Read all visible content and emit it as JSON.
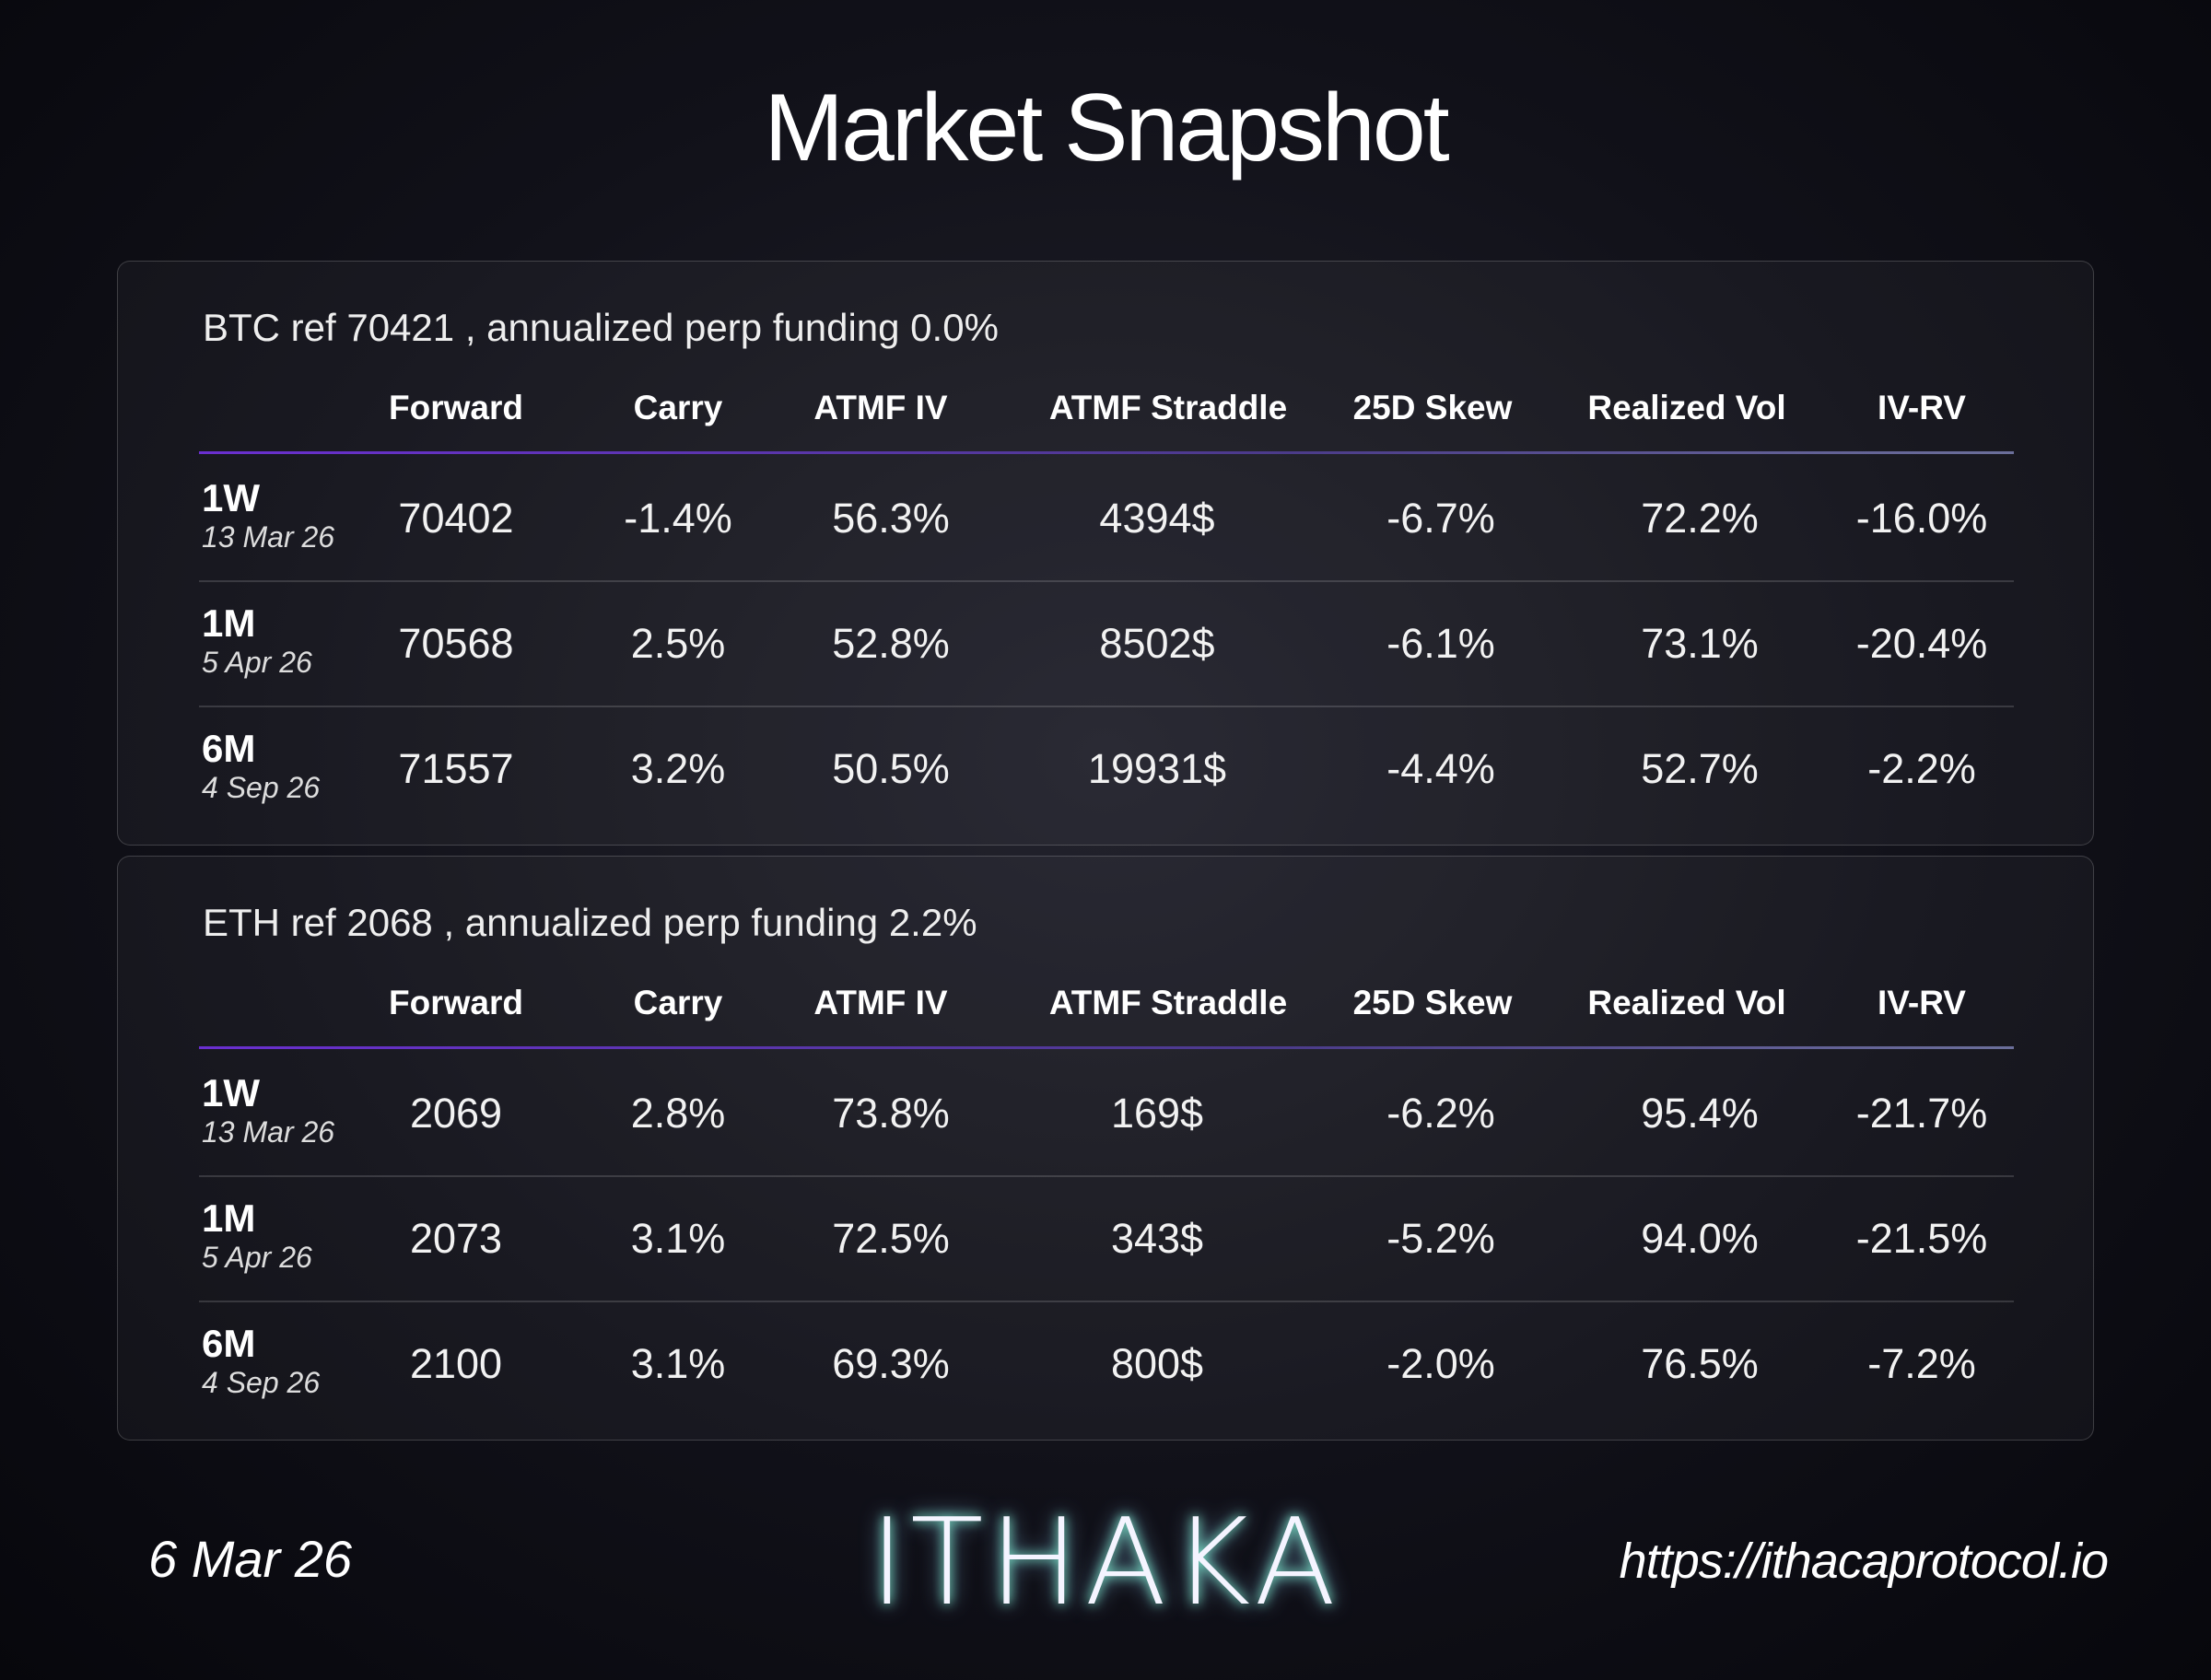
{
  "header": {
    "title": "Market Snapshot"
  },
  "tables": [
    {
      "caption": "BTC ref 70421 , annualized perp funding 0.0%",
      "columns": [
        "Forward",
        "Carry",
        "ATMF IV",
        "ATMF Straddle",
        "25D Skew",
        "Realized Vol",
        "IV-RV"
      ],
      "rows": [
        {
          "tenor": "1W",
          "date": "13 Mar 26",
          "cells": [
            "70402",
            "-1.4%",
            "56.3%",
            "4394$",
            "-6.7%",
            "72.2%",
            "-16.0%"
          ]
        },
        {
          "tenor": "1M",
          "date": "5 Apr 26",
          "cells": [
            "70568",
            "2.5%",
            "52.8%",
            "8502$",
            "-6.1%",
            "73.1%",
            "-20.4%"
          ]
        },
        {
          "tenor": "6M",
          "date": "4 Sep 26",
          "cells": [
            "71557",
            "3.2%",
            "50.5%",
            "19931$",
            "-4.4%",
            "52.7%",
            "-2.2%"
          ]
        }
      ]
    },
    {
      "caption": "ETH ref 2068 , annualized perp funding 2.2%",
      "columns": [
        "Forward",
        "Carry",
        "ATMF IV",
        "ATMF Straddle",
        "25D Skew",
        "Realized Vol",
        "IV-RV"
      ],
      "rows": [
        {
          "tenor": "1W",
          "date": "13 Mar 26",
          "cells": [
            "2069",
            "2.8%",
            "73.8%",
            "169$",
            "-6.2%",
            "95.4%",
            "-21.7%"
          ]
        },
        {
          "tenor": "1M",
          "date": "5 Apr 26",
          "cells": [
            "2073",
            "3.1%",
            "72.5%",
            "343$",
            "-5.2%",
            "94.0%",
            "-21.5%"
          ]
        },
        {
          "tenor": "6M",
          "date": "4 Sep 26",
          "cells": [
            "2100",
            "3.1%",
            "69.3%",
            "800$",
            "-2.0%",
            "76.5%",
            "-7.2%"
          ]
        }
      ]
    }
  ],
  "footer": {
    "date": "6 Mar 26",
    "logo": "ITHAKA",
    "url": "https://ithacaprotocol.io"
  }
}
